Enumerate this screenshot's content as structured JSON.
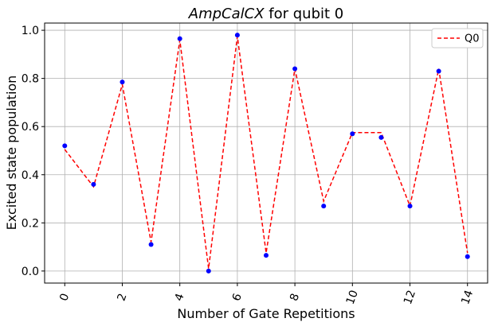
{
  "chart_data": {
    "type": "scatter",
    "title_math": "AmpCalCX",
    "title_rest": " for qubit 0",
    "xlabel": "Number of Gate Repetitions",
    "ylabel": "Excited state population",
    "xlim": [
      -0.7,
      14.7
    ],
    "ylim": [
      -0.05,
      1.03
    ],
    "x_ticks": [
      0,
      2,
      4,
      6,
      8,
      10,
      12,
      14
    ],
    "y_ticks": [
      0.0,
      0.2,
      0.4,
      0.6,
      0.8,
      1.0
    ],
    "y_tick_labels": [
      "0.0",
      "0.2",
      "0.4",
      "0.6",
      "0.8",
      "1.0"
    ],
    "x_tick_rotation_deg": 70,
    "grid": true,
    "legend_position": "top-right",
    "series": [
      {
        "kind": "points",
        "color": "#0000ff",
        "x": [
          0,
          1,
          2,
          3,
          4,
          5,
          6,
          7,
          8,
          9,
          10,
          11,
          12,
          13,
          14
        ],
        "y": [
          0.52,
          0.36,
          0.785,
          0.11,
          0.965,
          0.0,
          0.98,
          0.065,
          0.84,
          0.27,
          0.57,
          0.555,
          0.27,
          0.83,
          0.06
        ]
      },
      {
        "kind": "fit",
        "name": "Q0",
        "color": "#ff0000",
        "style": "dashed",
        "x": [
          0,
          1,
          2,
          3,
          4,
          5,
          6,
          7,
          8,
          9,
          10,
          11,
          12,
          13,
          14
        ],
        "y": [
          0.505,
          0.35,
          0.775,
          0.12,
          0.96,
          0.01,
          0.975,
          0.075,
          0.84,
          0.29,
          0.575,
          0.575,
          0.27,
          0.84,
          0.075
        ]
      }
    ]
  }
}
